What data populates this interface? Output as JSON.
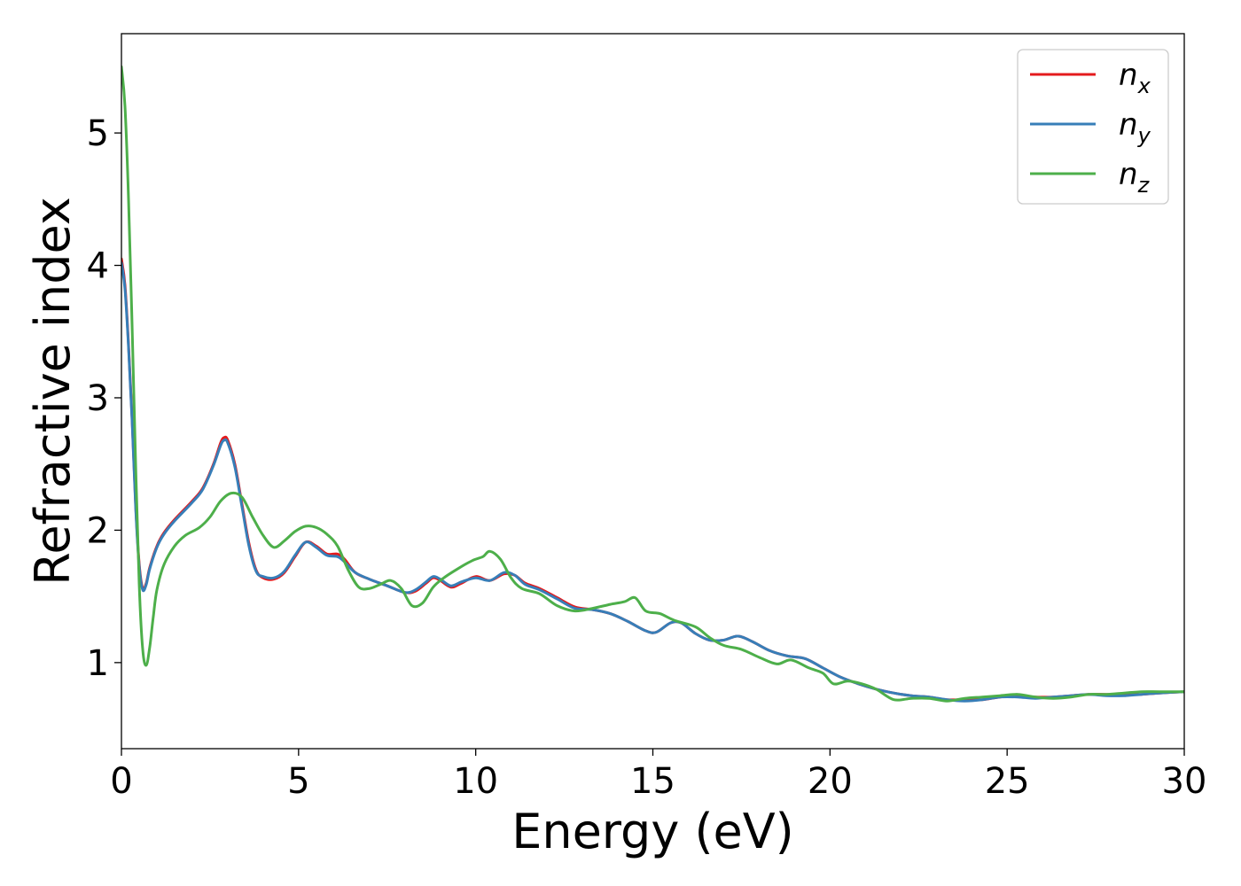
{
  "chart_data": {
    "type": "line",
    "xlabel": "Energy (eV)",
    "ylabel": "Refractive index",
    "xlim": [
      0,
      30
    ],
    "ylim": [
      0.35,
      5.75
    ],
    "xticks": [
      0,
      5,
      10,
      15,
      20,
      25,
      30
    ],
    "yticks": [
      1,
      2,
      3,
      4,
      5
    ],
    "grid": false,
    "legend_position": "top-right",
    "series": [
      {
        "name": "n",
        "sub": "x",
        "color": "#e41a1c",
        "points": [
          [
            0,
            4.05
          ],
          [
            0.1,
            3.85
          ],
          [
            0.2,
            3.4
          ],
          [
            0.3,
            2.85
          ],
          [
            0.4,
            2.2
          ],
          [
            0.5,
            1.75
          ],
          [
            0.6,
            1.56
          ],
          [
            0.7,
            1.6
          ],
          [
            0.8,
            1.72
          ],
          [
            1.0,
            1.88
          ],
          [
            1.2,
            1.98
          ],
          [
            1.5,
            2.08
          ],
          [
            2.0,
            2.22
          ],
          [
            2.3,
            2.32
          ],
          [
            2.6,
            2.5
          ],
          [
            2.8,
            2.66
          ],
          [
            2.9,
            2.7
          ],
          [
            3.0,
            2.68
          ],
          [
            3.2,
            2.5
          ],
          [
            3.4,
            2.2
          ],
          [
            3.6,
            1.9
          ],
          [
            3.8,
            1.7
          ],
          [
            4.0,
            1.64
          ],
          [
            4.3,
            1.63
          ],
          [
            4.6,
            1.68
          ],
          [
            4.9,
            1.8
          ],
          [
            5.2,
            1.91
          ],
          [
            5.5,
            1.88
          ],
          [
            5.8,
            1.82
          ],
          [
            6.1,
            1.82
          ],
          [
            6.3,
            1.78
          ],
          [
            6.6,
            1.68
          ],
          [
            7.0,
            1.63
          ],
          [
            7.5,
            1.58
          ],
          [
            8.0,
            1.53
          ],
          [
            8.3,
            1.54
          ],
          [
            8.6,
            1.6
          ],
          [
            8.8,
            1.64
          ],
          [
            9.0,
            1.62
          ],
          [
            9.3,
            1.57
          ],
          [
            9.6,
            1.6
          ],
          [
            10.0,
            1.65
          ],
          [
            10.4,
            1.62
          ],
          [
            10.8,
            1.67
          ],
          [
            11.1,
            1.66
          ],
          [
            11.4,
            1.6
          ],
          [
            11.8,
            1.56
          ],
          [
            12.3,
            1.49
          ],
          [
            12.8,
            1.42
          ],
          [
            13.3,
            1.4
          ],
          [
            13.8,
            1.37
          ],
          [
            14.3,
            1.31
          ],
          [
            14.8,
            1.24
          ],
          [
            15.1,
            1.23
          ],
          [
            15.5,
            1.3
          ],
          [
            15.8,
            1.3
          ],
          [
            16.2,
            1.22
          ],
          [
            16.6,
            1.17
          ],
          [
            17.0,
            1.17
          ],
          [
            17.4,
            1.2
          ],
          [
            17.8,
            1.16
          ],
          [
            18.3,
            1.09
          ],
          [
            18.8,
            1.05
          ],
          [
            19.3,
            1.03
          ],
          [
            19.8,
            0.96
          ],
          [
            20.3,
            0.89
          ],
          [
            20.8,
            0.84
          ],
          [
            21.3,
            0.8
          ],
          [
            21.8,
            0.77
          ],
          [
            22.3,
            0.75
          ],
          [
            22.8,
            0.74
          ],
          [
            23.3,
            0.72
          ],
          [
            23.8,
            0.72
          ],
          [
            24.3,
            0.72
          ],
          [
            24.8,
            0.74
          ],
          [
            25.3,
            0.75
          ],
          [
            25.8,
            0.74
          ],
          [
            26.3,
            0.74
          ],
          [
            26.8,
            0.75
          ],
          [
            27.3,
            0.76
          ],
          [
            27.8,
            0.76
          ],
          [
            28.3,
            0.76
          ],
          [
            28.8,
            0.76
          ],
          [
            29.3,
            0.77
          ],
          [
            30.0,
            0.78
          ]
        ]
      },
      {
        "name": "n",
        "sub": "y",
        "color": "#377eb8",
        "points": [
          [
            0,
            4.02
          ],
          [
            0.1,
            3.82
          ],
          [
            0.2,
            3.38
          ],
          [
            0.3,
            2.83
          ],
          [
            0.4,
            2.18
          ],
          [
            0.5,
            1.73
          ],
          [
            0.6,
            1.55
          ],
          [
            0.7,
            1.59
          ],
          [
            0.8,
            1.71
          ],
          [
            1.0,
            1.87
          ],
          [
            1.2,
            1.97
          ],
          [
            1.5,
            2.07
          ],
          [
            2.0,
            2.21
          ],
          [
            2.3,
            2.31
          ],
          [
            2.6,
            2.49
          ],
          [
            2.8,
            2.64
          ],
          [
            2.9,
            2.68
          ],
          [
            3.0,
            2.66
          ],
          [
            3.2,
            2.48
          ],
          [
            3.4,
            2.18
          ],
          [
            3.6,
            1.88
          ],
          [
            3.8,
            1.69
          ],
          [
            4.0,
            1.65
          ],
          [
            4.3,
            1.64
          ],
          [
            4.6,
            1.69
          ],
          [
            4.9,
            1.81
          ],
          [
            5.2,
            1.91
          ],
          [
            5.5,
            1.87
          ],
          [
            5.8,
            1.81
          ],
          [
            6.1,
            1.8
          ],
          [
            6.3,
            1.76
          ],
          [
            6.6,
            1.68
          ],
          [
            7.0,
            1.63
          ],
          [
            7.5,
            1.58
          ],
          [
            8.0,
            1.53
          ],
          [
            8.3,
            1.55
          ],
          [
            8.6,
            1.61
          ],
          [
            8.8,
            1.65
          ],
          [
            9.0,
            1.63
          ],
          [
            9.3,
            1.58
          ],
          [
            9.6,
            1.61
          ],
          [
            10.0,
            1.64
          ],
          [
            10.4,
            1.62
          ],
          [
            10.8,
            1.68
          ],
          [
            11.1,
            1.66
          ],
          [
            11.4,
            1.59
          ],
          [
            11.8,
            1.55
          ],
          [
            12.3,
            1.48
          ],
          [
            12.8,
            1.41
          ],
          [
            13.3,
            1.4
          ],
          [
            13.8,
            1.37
          ],
          [
            14.3,
            1.31
          ],
          [
            14.8,
            1.24
          ],
          [
            15.1,
            1.23
          ],
          [
            15.5,
            1.3
          ],
          [
            15.8,
            1.3
          ],
          [
            16.2,
            1.22
          ],
          [
            16.6,
            1.17
          ],
          [
            17.0,
            1.17
          ],
          [
            17.4,
            1.2
          ],
          [
            17.8,
            1.16
          ],
          [
            18.3,
            1.09
          ],
          [
            18.8,
            1.05
          ],
          [
            19.3,
            1.03
          ],
          [
            19.8,
            0.96
          ],
          [
            20.3,
            0.89
          ],
          [
            20.8,
            0.84
          ],
          [
            21.3,
            0.8
          ],
          [
            21.8,
            0.77
          ],
          [
            22.3,
            0.75
          ],
          [
            22.8,
            0.74
          ],
          [
            23.3,
            0.72
          ],
          [
            23.8,
            0.71
          ],
          [
            24.3,
            0.72
          ],
          [
            24.8,
            0.74
          ],
          [
            25.3,
            0.74
          ],
          [
            25.8,
            0.73
          ],
          [
            26.3,
            0.74
          ],
          [
            26.8,
            0.75
          ],
          [
            27.3,
            0.76
          ],
          [
            27.8,
            0.75
          ],
          [
            28.3,
            0.75
          ],
          [
            28.8,
            0.76
          ],
          [
            29.3,
            0.77
          ],
          [
            30.0,
            0.78
          ]
        ]
      },
      {
        "name": "n",
        "sub": "z",
        "color": "#4daf4a",
        "points": [
          [
            0,
            5.5
          ],
          [
            0.1,
            5.2
          ],
          [
            0.2,
            4.5
          ],
          [
            0.3,
            3.55
          ],
          [
            0.4,
            2.5
          ],
          [
            0.5,
            1.6
          ],
          [
            0.6,
            1.1
          ],
          [
            0.7,
            0.98
          ],
          [
            0.8,
            1.12
          ],
          [
            0.9,
            1.35
          ],
          [
            1.0,
            1.55
          ],
          [
            1.2,
            1.74
          ],
          [
            1.5,
            1.88
          ],
          [
            1.8,
            1.96
          ],
          [
            2.2,
            2.02
          ],
          [
            2.5,
            2.1
          ],
          [
            2.8,
            2.22
          ],
          [
            3.1,
            2.28
          ],
          [
            3.4,
            2.25
          ],
          [
            3.7,
            2.1
          ],
          [
            4.0,
            1.96
          ],
          [
            4.3,
            1.87
          ],
          [
            4.6,
            1.92
          ],
          [
            4.9,
            1.99
          ],
          [
            5.2,
            2.03
          ],
          [
            5.5,
            2.02
          ],
          [
            5.8,
            1.97
          ],
          [
            6.1,
            1.88
          ],
          [
            6.4,
            1.7
          ],
          [
            6.7,
            1.57
          ],
          [
            7.0,
            1.56
          ],
          [
            7.3,
            1.59
          ],
          [
            7.6,
            1.62
          ],
          [
            7.9,
            1.56
          ],
          [
            8.2,
            1.43
          ],
          [
            8.5,
            1.45
          ],
          [
            8.8,
            1.57
          ],
          [
            9.1,
            1.64
          ],
          [
            9.5,
            1.71
          ],
          [
            9.9,
            1.77
          ],
          [
            10.2,
            1.8
          ],
          [
            10.4,
            1.84
          ],
          [
            10.7,
            1.78
          ],
          [
            11.0,
            1.64
          ],
          [
            11.3,
            1.56
          ],
          [
            11.8,
            1.52
          ],
          [
            12.3,
            1.43
          ],
          [
            12.8,
            1.39
          ],
          [
            13.3,
            1.41
          ],
          [
            13.8,
            1.44
          ],
          [
            14.2,
            1.46
          ],
          [
            14.5,
            1.49
          ],
          [
            14.8,
            1.39
          ],
          [
            15.2,
            1.37
          ],
          [
            15.6,
            1.32
          ],
          [
            16.2,
            1.27
          ],
          [
            16.6,
            1.19
          ],
          [
            17.0,
            1.13
          ],
          [
            17.5,
            1.1
          ],
          [
            18.0,
            1.04
          ],
          [
            18.5,
            0.99
          ],
          [
            18.9,
            1.02
          ],
          [
            19.4,
            0.96
          ],
          [
            19.8,
            0.92
          ],
          [
            20.1,
            0.84
          ],
          [
            20.5,
            0.86
          ],
          [
            20.9,
            0.84
          ],
          [
            21.3,
            0.8
          ],
          [
            21.8,
            0.72
          ],
          [
            22.3,
            0.73
          ],
          [
            22.8,
            0.73
          ],
          [
            23.3,
            0.71
          ],
          [
            23.8,
            0.73
          ],
          [
            24.3,
            0.74
          ],
          [
            24.8,
            0.75
          ],
          [
            25.3,
            0.76
          ],
          [
            25.8,
            0.74
          ],
          [
            26.3,
            0.73
          ],
          [
            26.8,
            0.74
          ],
          [
            27.3,
            0.76
          ],
          [
            27.8,
            0.76
          ],
          [
            28.3,
            0.77
          ],
          [
            28.8,
            0.78
          ],
          [
            29.3,
            0.78
          ],
          [
            30.0,
            0.78
          ]
        ]
      }
    ]
  }
}
